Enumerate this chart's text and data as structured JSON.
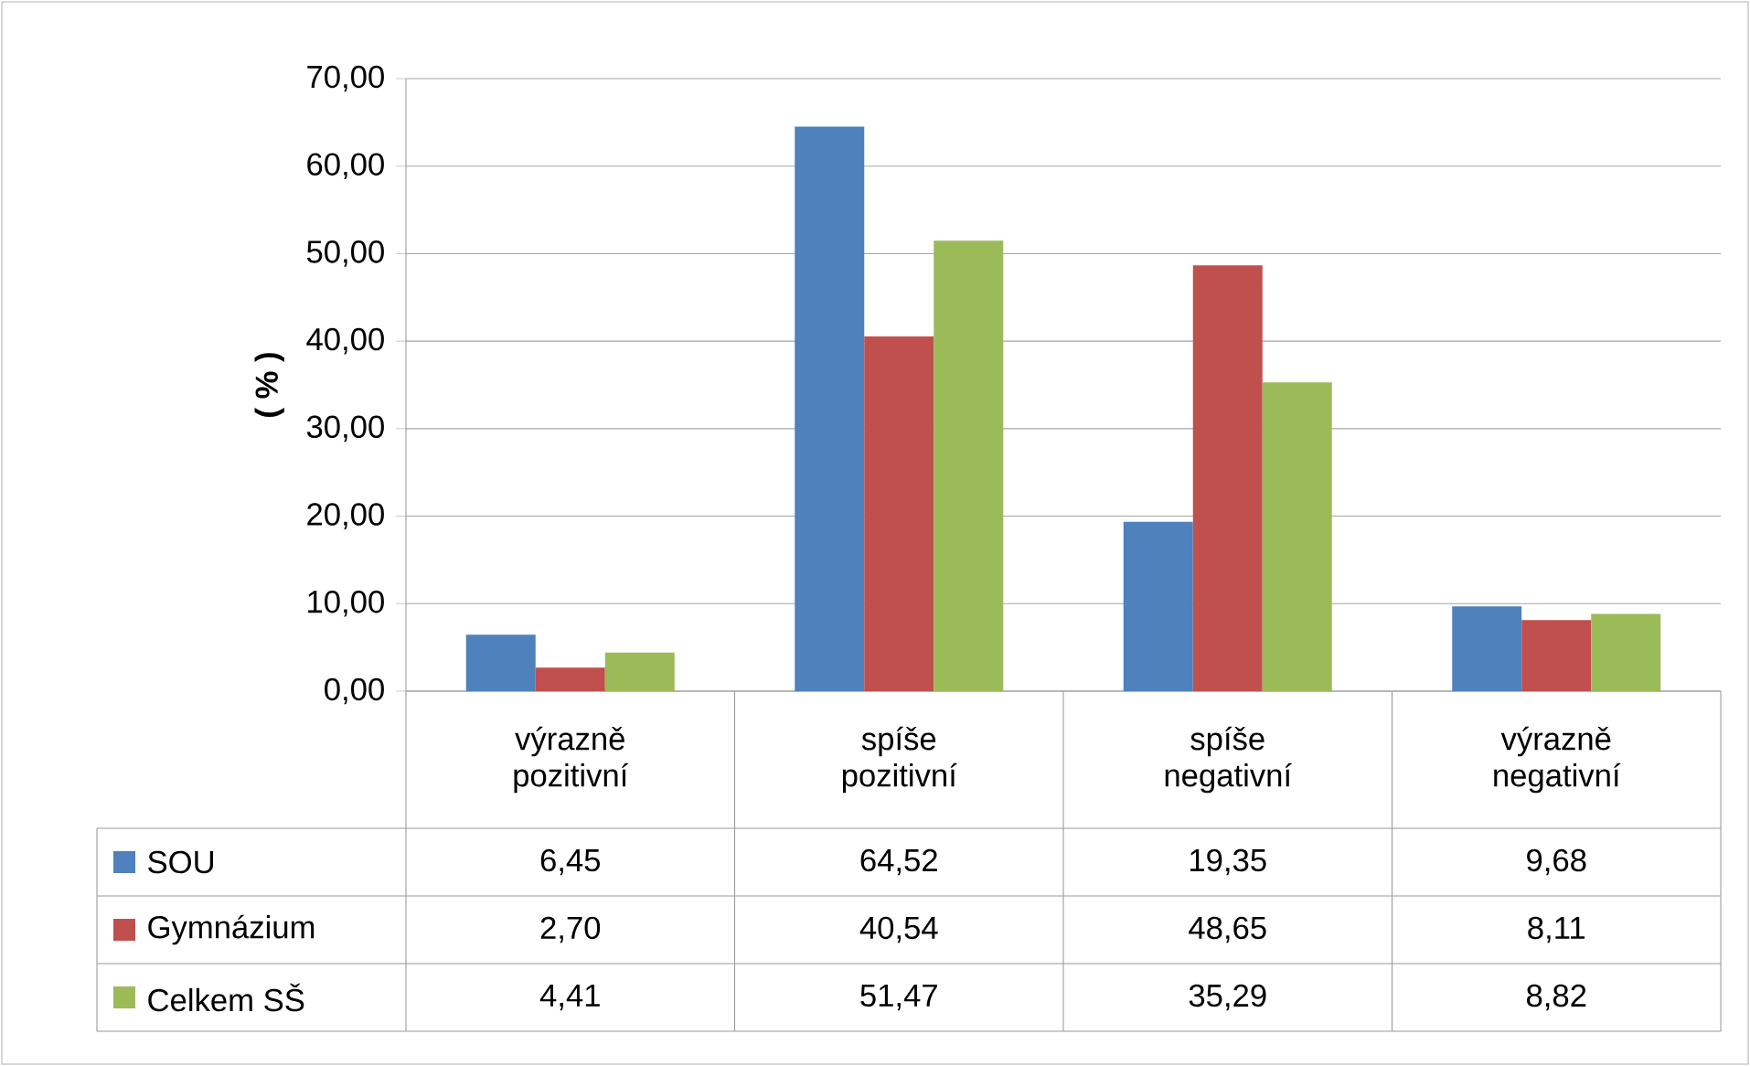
{
  "chart_data": {
    "type": "bar",
    "ylabel": "( % )",
    "categories": [
      "výrazně pozitivní",
      "spíše pozitivní",
      "spíše negativní",
      "výrazně negativní"
    ],
    "series": [
      {
        "name": "SOU",
        "color": "#4f81bd",
        "values": [
          6.45,
          64.52,
          19.35,
          9.68
        ],
        "value_labels": [
          "6,45",
          "64,52",
          "19,35",
          "9,68"
        ]
      },
      {
        "name": "Gymnázium",
        "color": "#c0504d",
        "values": [
          2.7,
          40.54,
          48.65,
          8.11
        ],
        "value_labels": [
          "2,70",
          "40,54",
          "48,65",
          "8,11"
        ]
      },
      {
        "name": "Celkem SŠ",
        "color": "#9bbb59",
        "values": [
          4.41,
          51.47,
          35.29,
          8.82
        ],
        "value_labels": [
          "4,41",
          "51,47",
          "35,29",
          "8,82"
        ]
      }
    ],
    "ylim": [
      0,
      70
    ],
    "yticks": [
      {
        "value": 0,
        "label": "0,00"
      },
      {
        "value": 10,
        "label": "10,00"
      },
      {
        "value": 20,
        "label": "20,00"
      },
      {
        "value": 30,
        "label": "30,00"
      },
      {
        "value": 40,
        "label": "40,00"
      },
      {
        "value": 50,
        "label": "50,00"
      },
      {
        "value": 60,
        "label": "60,00"
      },
      {
        "value": 70,
        "label": "70,00"
      }
    ],
    "grid": "y",
    "legend": "bottom"
  }
}
